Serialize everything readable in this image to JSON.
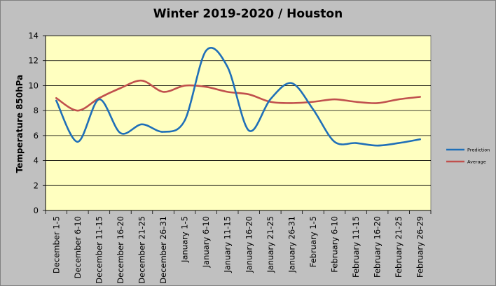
{
  "chart_data": {
    "type": "line",
    "title": "Winter 2019-2020 / Houston",
    "xlabel": "",
    "ylabel": "Temperature 850hPa",
    "ylim": [
      0,
      14
    ],
    "yticks": [
      0,
      2,
      4,
      6,
      8,
      10,
      12,
      14
    ],
    "grid": true,
    "legend_position": "right",
    "categories": [
      "December 1-5",
      "December 6-10",
      "December 11-15",
      "December 16-20",
      "December 21-25",
      "December 26-31",
      "January 1-5",
      "January 6-10",
      "January 11-15",
      "January 16-20",
      "January 21-25",
      "January 26-31",
      "February 1-5",
      "February 6-10",
      "February 11-15",
      "February 16-20",
      "February 21-25",
      "February 26-29"
    ],
    "series": [
      {
        "name": "Prediction",
        "color": "#1f6fb8",
        "values": [
          8.8,
          5.5,
          8.9,
          6.2,
          6.9,
          6.3,
          7.2,
          12.8,
          11.5,
          6.4,
          8.9,
          10.2,
          8.1,
          5.5,
          5.4,
          5.2,
          5.4,
          5.7
        ]
      },
      {
        "name": "Average",
        "color": "#c0504d",
        "values": [
          9.0,
          8.0,
          9.0,
          9.8,
          10.4,
          9.5,
          10.0,
          9.9,
          9.5,
          9.3,
          8.7,
          8.6,
          8.7,
          8.9,
          8.7,
          8.6,
          8.9,
          9.1
        ]
      }
    ]
  }
}
